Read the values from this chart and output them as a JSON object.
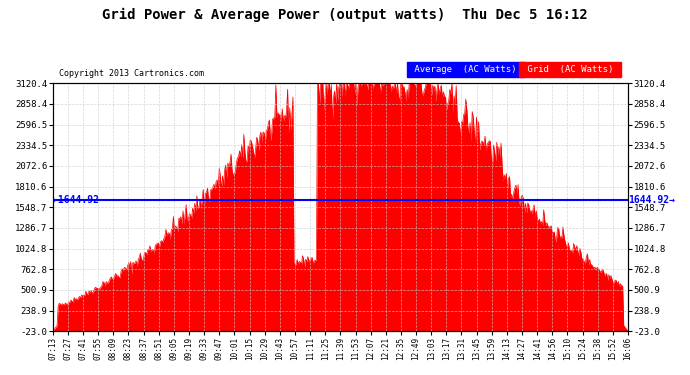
{
  "title": "Grid Power & Average Power (output watts)  Thu Dec 5 16:12",
  "copyright": "Copyright 2013 Cartronics.com",
  "average_line_y": 1644.92,
  "average_label": "1644.92",
  "ymin": -23.0,
  "ymax": 3120.4,
  "yticks": [
    3120.4,
    2858.4,
    2596.5,
    2334.5,
    2072.6,
    1810.6,
    1548.7,
    1286.7,
    1024.8,
    762.8,
    500.9,
    238.9,
    -23.0
  ],
  "background_color": "#ffffff",
  "grid_color": "#cccccc",
  "fill_color": "#ff0000",
  "avg_line_color": "#0000ff",
  "legend_avg_bg": "#0000ff",
  "legend_grid_bg": "#ff0000",
  "x_start": "07:13",
  "x_end": "16:06",
  "xtick_labels": [
    "07:13",
    "07:27",
    "07:41",
    "07:55",
    "08:09",
    "08:23",
    "08:37",
    "08:51",
    "09:05",
    "09:19",
    "09:33",
    "09:47",
    "10:01",
    "10:15",
    "10:29",
    "10:43",
    "10:57",
    "11:11",
    "11:25",
    "11:39",
    "11:53",
    "12:07",
    "12:21",
    "12:35",
    "12:49",
    "13:03",
    "13:17",
    "13:31",
    "13:45",
    "13:59",
    "14:13",
    "14:27",
    "14:41",
    "14:56",
    "15:10",
    "15:24",
    "15:38",
    "15:52",
    "16:06"
  ]
}
